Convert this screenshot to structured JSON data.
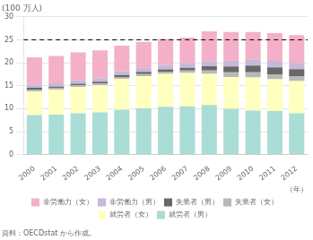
{
  "chart_data": {
    "type": "bar",
    "stacked": true,
    "categories": [
      "2000",
      "2001",
      "2002",
      "2003",
      "2004",
      "2005",
      "2006",
      "2007",
      "2008",
      "2009",
      "2010",
      "2011",
      "2012"
    ],
    "series": [
      {
        "name": "就労者（男）",
        "color": "#aaddd5",
        "values": [
          8.6,
          8.7,
          9.0,
          9.2,
          9.8,
          10.1,
          10.4,
          10.5,
          10.8,
          10.0,
          9.6,
          9.5,
          9.0
        ]
      },
      {
        "name": "就労者（女）",
        "color": "#ffffc0",
        "values": [
          5.2,
          5.4,
          5.7,
          5.9,
          6.7,
          7.0,
          7.2,
          7.3,
          6.8,
          6.9,
          7.2,
          6.9,
          7.0
        ]
      },
      {
        "name": "失業者（女）",
        "color": "#b8b8b8",
        "values": [
          0.35,
          0.35,
          0.38,
          0.38,
          0.4,
          0.45,
          0.48,
          0.5,
          0.7,
          1.0,
          1.1,
          1.1,
          1.1
        ]
      },
      {
        "name": "失業者（男）",
        "color": "#686868",
        "values": [
          0.4,
          0.35,
          0.38,
          0.38,
          0.42,
          0.48,
          0.5,
          0.58,
          0.92,
          1.3,
          1.5,
          1.52,
          1.5
        ]
      },
      {
        "name": "非労働力（男）",
        "color": "#c8b8d8",
        "values": [
          0.75,
          0.75,
          0.78,
          0.78,
          0.85,
          0.88,
          0.95,
          1.05,
          1.15,
          1.25,
          1.35,
          1.38,
          1.38
        ]
      },
      {
        "name": "非労働力（女）",
        "color": "#f4b0c8",
        "values": [
          5.9,
          5.95,
          6.0,
          6.05,
          5.55,
          5.65,
          5.65,
          5.55,
          6.45,
          6.25,
          5.95,
          6.05,
          6.05
        ]
      }
    ],
    "ylabel": "(100 万人)",
    "xlabel": "（年）",
    "source": "資料：OECDstat から作成。",
    "ylim": [
      0,
      30
    ],
    "yticks": [
      0,
      5,
      10,
      15,
      20,
      25,
      30
    ],
    "hlines": [
      {
        "y": 25,
        "line_style": "dashed",
        "color": "#000000"
      }
    ],
    "grid": true,
    "legend": "bottom"
  }
}
